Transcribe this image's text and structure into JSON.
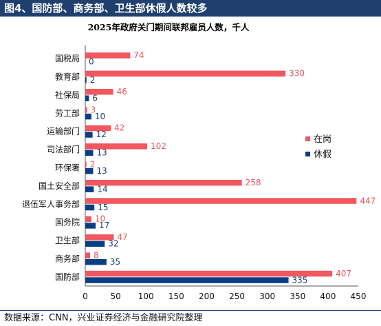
{
  "header": {
    "title": "图4、国防部、商务部、卫生部休假人数较多"
  },
  "footer": {
    "source": "数据来源：CNN，兴业证券经济与金融研究院整理"
  },
  "chart_data": {
    "type": "bar",
    "orientation": "horizontal",
    "title": "2025年政府关门期间联邦雇员人数，千人",
    "categories": [
      "国税局",
      "教育部",
      "社保局",
      "劳工部",
      "运输部门",
      "司法部门",
      "环保署",
      "国土安全部",
      "退伍军人事务部",
      "国务院",
      "卫生部",
      "商务部",
      "国防部"
    ],
    "series": [
      {
        "name": "在岗",
        "color": "#f0575f",
        "label_color": "#e8555b",
        "values": [
          74,
          330,
          46,
          3,
          42,
          102,
          2,
          258,
          447,
          10,
          47,
          8,
          407
        ]
      },
      {
        "name": "休假",
        "color": "#0a3e84",
        "label_color": "#16407a",
        "values": [
          0,
          2,
          6,
          10,
          12,
          13,
          13,
          14,
          15,
          17,
          32,
          35,
          335
        ]
      }
    ],
    "xlim": [
      0,
      450
    ],
    "xticks": [
      0,
      50,
      100,
      150,
      200,
      250,
      300,
      350,
      400,
      450
    ],
    "legend_position": "right",
    "grid": false
  }
}
